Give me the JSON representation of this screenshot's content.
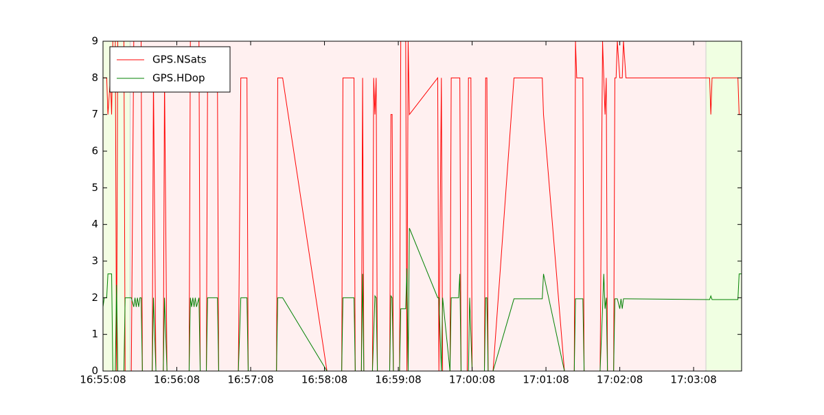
{
  "chart_data": {
    "type": "line",
    "xlim": [
      "16:55:08",
      "17:03:47"
    ],
    "ylim": [
      0,
      9
    ],
    "xticks": [
      "16:55:08",
      "16:56:08",
      "16:57:08",
      "16:58:08",
      "16:59:08",
      "17:00:08",
      "17:01:08",
      "17:02:08",
      "17:03:08"
    ],
    "yticks": [
      0,
      1,
      2,
      3,
      4,
      5,
      6,
      7,
      8,
      9
    ],
    "legend": "upper left",
    "regions": [
      {
        "start": "16:55:08",
        "end": "16:55:30",
        "color": "#f3fde3"
      },
      {
        "start": "16:55:30",
        "end": "17:03:18",
        "color": "#fff0f0"
      },
      {
        "start": "17:03:18",
        "end": "17:03:47",
        "color": "#f0ffe2"
      }
    ],
    "series": [
      {
        "name": "GPS.NSats",
        "color": "#ff0000",
        "x": [
          "16:55:08",
          "16:55:11",
          "16:55:12",
          "16:55:14",
          "16:55:15",
          "16:55:16",
          "16:55:18",
          "16:55:19",
          "16:55:20",
          "16:55:25",
          "16:55:26",
          "16:55:31",
          "16:55:33",
          "16:55:39",
          "16:55:40",
          "16:55:48",
          "16:55:49",
          "16:55:51",
          "16:55:57",
          "16:55:58",
          "16:56:00",
          "16:56:18",
          "16:56:19",
          "16:56:26",
          "16:56:27",
          "16:56:32",
          "16:56:33",
          "16:56:41",
          "16:56:42",
          "16:56:58",
          "16:57:00",
          "16:57:05",
          "16:57:06",
          "16:57:29",
          "16:57:30",
          "16:57:34",
          "16:58:10",
          "16:58:22",
          "16:58:23",
          "16:58:32",
          "16:58:33",
          "16:58:38",
          "16:58:39",
          "16:58:40",
          "16:58:47",
          "16:58:48",
          "16:58:49",
          "16:58:50",
          "16:58:51",
          "16:59:01",
          "16:59:02",
          "16:59:03",
          "16:59:04",
          "16:59:09",
          "16:59:10",
          "16:59:14",
          "16:59:15",
          "16:59:16",
          "16:59:17",
          "16:59:40",
          "16:59:41",
          "16:59:43",
          "16:59:44",
          "16:59:50",
          "16:59:51",
          "16:59:58",
          "16:59:59",
          "17:00:04",
          "17:00:05",
          "17:00:07",
          "17:00:08",
          "17:00:18",
          "17:00:19",
          "17:00:20",
          "17:00:21",
          "17:00:25",
          "17:00:42",
          "17:01:05",
          "17:01:06",
          "17:01:23",
          "17:01:31",
          "17:01:32",
          "17:01:33",
          "17:01:38",
          "17:01:39",
          "17:01:52",
          "17:01:54",
          "17:01:55",
          "17:01:56",
          "17:01:57",
          "17:01:58",
          "17:02:03",
          "17:02:04",
          "17:02:05",
          "17:02:06",
          "17:02:08",
          "17:02:10",
          "17:02:11",
          "17:02:13",
          "17:03:21",
          "17:03:22",
          "17:03:23",
          "17:03:44",
          "17:03:45",
          "17:03:47"
        ],
        "values": [
          8,
          8,
          7,
          8,
          7,
          9,
          9,
          0,
          9,
          9,
          0,
          0,
          9,
          9,
          0,
          0,
          8,
          0,
          0,
          8,
          0,
          0,
          9,
          9,
          0,
          0,
          8,
          8,
          0,
          0,
          8,
          8,
          0,
          0,
          8,
          8,
          0,
          0,
          8,
          8,
          0,
          0,
          8,
          0,
          0,
          8,
          7,
          8,
          0,
          0,
          7,
          7,
          0,
          0,
          9,
          9,
          0,
          9,
          7,
          8,
          0,
          8,
          0,
          0,
          8,
          8,
          0,
          0,
          8,
          8,
          0,
          0,
          8,
          8,
          0,
          0,
          8,
          8,
          7,
          0,
          0,
          9,
          8,
          8,
          0,
          0,
          9,
          8,
          7,
          8,
          0,
          0,
          8,
          8,
          9,
          8,
          8,
          9,
          8,
          8,
          7,
          8,
          8,
          7,
          7
        ]
      },
      {
        "name": "GPS.HDop",
        "color": "#008000",
        "x": [
          "16:55:08",
          "16:55:09",
          "16:55:11",
          "16:55:12",
          "16:55:15",
          "16:55:16",
          "16:55:18",
          "16:55:19",
          "16:55:20",
          "16:55:25",
          "16:55:26",
          "16:55:31",
          "16:55:33",
          "16:55:34",
          "16:55:35",
          "16:55:36",
          "16:55:37",
          "16:55:38",
          "16:55:39",
          "16:55:40",
          "16:55:48",
          "16:55:49",
          "16:55:51",
          "16:55:57",
          "16:55:58",
          "16:56:00",
          "16:56:18",
          "16:56:19",
          "16:56:20",
          "16:56:21",
          "16:56:22",
          "16:56:23",
          "16:56:24",
          "16:56:26",
          "16:56:27",
          "16:56:32",
          "16:56:33",
          "16:56:41",
          "16:56:42",
          "16:56:58",
          "16:57:00",
          "16:57:05",
          "16:57:06",
          "16:57:29",
          "16:57:30",
          "16:57:34",
          "16:58:10",
          "16:58:22",
          "16:58:23",
          "16:58:32",
          "16:58:33",
          "16:58:38",
          "16:58:39",
          "16:58:40",
          "16:58:47",
          "16:58:49",
          "16:58:50",
          "16:58:51",
          "16:59:01",
          "16:59:02",
          "16:59:03",
          "16:59:04",
          "16:59:09",
          "16:59:10",
          "16:59:14",
          "16:59:15",
          "16:59:16",
          "16:59:17",
          "16:59:40",
          "16:59:41",
          "16:59:43",
          "16:59:44",
          "16:59:50",
          "16:59:51",
          "16:59:57",
          "16:59:58",
          "16:59:59",
          "17:00:05",
          "17:00:06",
          "17:00:08",
          "17:00:18",
          "17:00:19",
          "17:00:20",
          "17:00:21",
          "17:00:25",
          "17:00:42",
          "17:01:05",
          "17:01:06",
          "17:01:23",
          "17:01:31",
          "17:01:32",
          "17:01:38",
          "17:01:39",
          "17:01:52",
          "17:01:54",
          "17:01:55",
          "17:01:56",
          "17:01:57",
          "17:01:58",
          "17:02:03",
          "17:02:04",
          "17:02:06",
          "17:02:08",
          "17:02:09",
          "17:02:10",
          "17:02:11",
          "17:02:13",
          "17:03:21",
          "17:03:22",
          "17:03:23",
          "17:03:44",
          "17:03:45",
          "17:03:47"
        ],
        "values": [
          1.75,
          2,
          2,
          2.65,
          2.65,
          0,
          0,
          2.35,
          0,
          0,
          2,
          2,
          1.75,
          2,
          1.75,
          2,
          1.75,
          2,
          2,
          0,
          0,
          2,
          0,
          0,
          2,
          0,
          0,
          2,
          1.75,
          2,
          1.75,
          2,
          1.75,
          2,
          0,
          0,
          2,
          2,
          0,
          0,
          2,
          2,
          0,
          0,
          2,
          2,
          0,
          0,
          2,
          2,
          0,
          0,
          2.65,
          0,
          0,
          2.05,
          2,
          0,
          0,
          2.05,
          2,
          0,
          0,
          1.7,
          1.7,
          2.8,
          0,
          3.9,
          2,
          2,
          0,
          2,
          0,
          2,
          2,
          2.65,
          0,
          0,
          2,
          0,
          0,
          2,
          2,
          0,
          0,
          1.97,
          1.97,
          2.65,
          0,
          0,
          1.97,
          1.97,
          0,
          0,
          1.7,
          2.65,
          1.7,
          2,
          0,
          0,
          1.97,
          1.97,
          1.7,
          1.97,
          1.7,
          1.97,
          1.97,
          1.95,
          2.05,
          1.95,
          1.95,
          2.65,
          2.65
        ]
      }
    ]
  }
}
